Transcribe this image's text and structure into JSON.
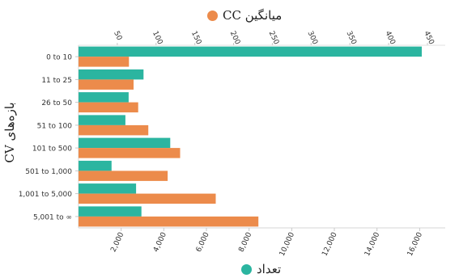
{
  "chart_data": {
    "type": "bar",
    "orientation": "horizontal",
    "ylabel": "بازه‌های CV",
    "categories": [
      "0 to 10",
      "11 to 25",
      "26 to 50",
      "51 to 100",
      "101 to 500",
      "501 to 1,000",
      "1,001 to 5,000",
      "5,001 to ∞"
    ],
    "series": [
      {
        "name": "تعداد",
        "axis": "bottom",
        "color": "#2bb5a0",
        "values": [
          16100,
          3050,
          2350,
          2200,
          4300,
          1550,
          2700,
          2950
        ]
      },
      {
        "name": "میانگین CC",
        "axis": "top",
        "color": "#ec8b4b",
        "values": [
          65,
          71,
          77,
          90,
          131,
          115,
          177,
          232
        ]
      }
    ],
    "bottom_axis": {
      "min": 0,
      "max": 17200,
      "ticks": [
        2000,
        4000,
        6000,
        8000,
        10000,
        12000,
        14000,
        16000
      ],
      "tick_labels": [
        "2,000",
        "4,000",
        "6,000",
        "8,000",
        "10,000",
        "12,000",
        "14,000",
        "16,000"
      ]
    },
    "top_axis": {
      "min": 0,
      "max": 473,
      "ticks": [
        50,
        100,
        150,
        200,
        250,
        300,
        350,
        400,
        450
      ],
      "tick_labels": [
        "50",
        "100",
        "150",
        "200",
        "250",
        "300",
        "350",
        "400",
        "450"
      ]
    },
    "grid": false,
    "legend_placement": "top and bottom"
  }
}
